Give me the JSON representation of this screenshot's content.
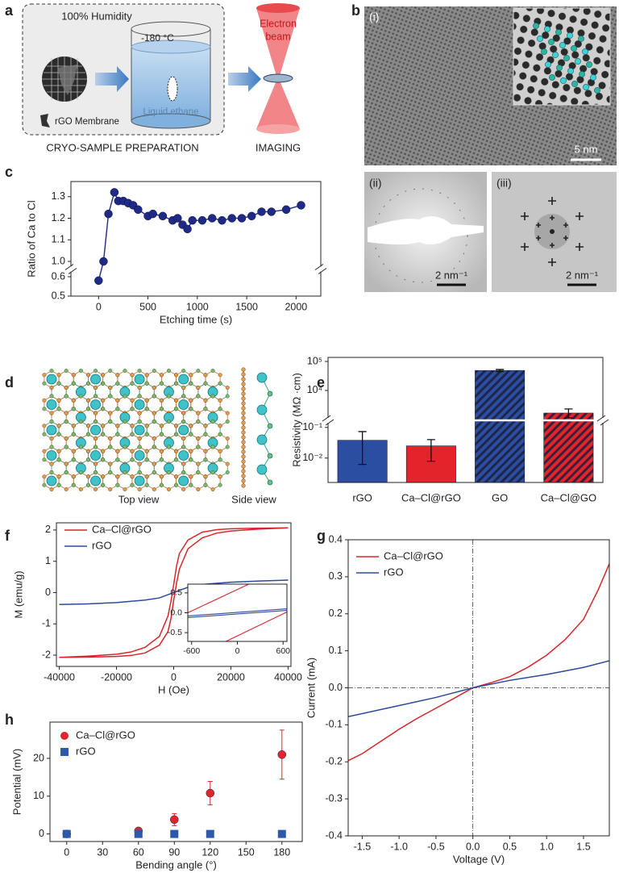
{
  "panel_labels": [
    "a",
    "b",
    "c",
    "d",
    "e",
    "f",
    "g",
    "h"
  ],
  "panel_a": {
    "humidity": "100% Humidity",
    "temperature": "-180 °C",
    "membrane": "rGO Membrane",
    "liquid": "Liquid ethane",
    "preparation": "CRYO-SAMPLE PREPARATION",
    "beam_lines": [
      "Electron",
      "beam"
    ],
    "imaging": "IMAGING"
  },
  "panel_b": {
    "labels": [
      "(i)",
      "(ii)",
      "(iii)"
    ],
    "scale_bars": [
      "5 nm",
      "2 nm⁻¹",
      "2 nm⁻¹"
    ]
  },
  "panel_d": {
    "top_view": "Top view",
    "side_view": "Side view"
  },
  "chart_data": [
    {
      "type": "line",
      "x_label": "Etching time (s)",
      "y_label": "Ratio of Ca to Cl",
      "xlim": [
        -280,
        2250
      ],
      "xticks": [
        0,
        500,
        1000,
        1500,
        2000
      ],
      "ylim": [
        0.5,
        1.37
      ],
      "y_break": [
        0.6,
        1.0
      ],
      "yticks": [
        0.5,
        0.6,
        {
          "value": 1.0,
          "label": "1.0"
        },
        1.1,
        1.2,
        1.3
      ],
      "series": [
        {
          "color": "#1e2a86",
          "marker": "circle",
          "x": [
            0,
            50,
            100,
            160,
            200,
            250,
            300,
            350,
            400,
            500,
            550,
            650,
            750,
            800,
            850,
            900,
            950,
            1050,
            1150,
            1250,
            1350,
            1450,
            1550,
            1650,
            1750,
            1900,
            2050
          ],
          "values": [
            0.58,
            1.0,
            1.22,
            1.32,
            1.28,
            1.28,
            1.27,
            1.26,
            1.24,
            1.21,
            1.22,
            1.21,
            1.19,
            1.2,
            1.17,
            1.15,
            1.19,
            1.19,
            1.2,
            1.19,
            1.2,
            1.2,
            1.21,
            1.23,
            1.23,
            1.24,
            1.26
          ]
        }
      ]
    },
    {
      "type": "bar",
      "y_label": "Resistivity (MΩ ·cm)",
      "y_scale": "log",
      "categories": [
        "rGO",
        "Ca–Cl@rGO",
        "GO",
        "Ca–Cl@GO"
      ],
      "values": [
        0.038,
        0.025,
        49000,
        1660
      ],
      "error_low": [
        0.0062,
        0.0079,
        45000,
        1150
      ],
      "error_high": [
        0.073,
        0.04,
        53000,
        2300
      ],
      "colors": [
        "#2b4ea2",
        "#e3242b",
        "#2b4ea2",
        "#e3242b"
      ],
      "hatched": [
        false,
        false,
        true,
        true
      ],
      "ylim": [
        0.0016,
        138000
      ],
      "y_break": [
        0.17,
        930
      ],
      "yticks": [
        {
          "value": 0.01,
          "label": "10⁻²"
        },
        {
          "value": 0.1,
          "label": "10⁻¹"
        },
        {
          "value": 10000,
          "label": "10⁴"
        },
        {
          "value": 100000,
          "label": "10⁵"
        }
      ]
    },
    {
      "type": "line",
      "x_label": "H (Oe)",
      "y_label": "M (emu/g)",
      "legend": "upper left",
      "xlim": [
        -41000,
        41000
      ],
      "xticks": [
        -40000,
        -20000,
        0,
        20000,
        40000
      ],
      "ylim": [
        -2.36,
        2.23
      ],
      "yticks": [
        2,
        1,
        0,
        -1,
        -2
      ],
      "series": [
        {
          "name": "Ca–Cl@rGO",
          "color": "#d7262b",
          "x": [
            40000,
            30000,
            20000,
            15000,
            10000,
            5000,
            2000,
            1000,
            0,
            -1000,
            -2000,
            -5000,
            -10000,
            -15000,
            -20000,
            -30000,
            -40000,
            -30000,
            -20000,
            -15000,
            -10000,
            -5000,
            -2000,
            -1000,
            0,
            1000,
            2000,
            5000,
            10000,
            15000,
            20000,
            30000,
            40000
          ],
          "values": [
            2.07,
            2.06,
            2.04,
            2.01,
            1.93,
            1.68,
            1.25,
            0.85,
            0.25,
            -0.3,
            -0.75,
            -1.4,
            -1.75,
            -1.9,
            -1.97,
            -2.03,
            -2.07,
            -2.06,
            -2.04,
            -2.01,
            -1.93,
            -1.68,
            -1.25,
            -0.85,
            -0.25,
            0.3,
            0.75,
            1.4,
            1.75,
            1.9,
            1.97,
            2.03,
            2.07
          ]
        },
        {
          "name": "rGO",
          "color": "#2d4b9a",
          "x": [
            -40000,
            -30000,
            -20000,
            -10000,
            -5000,
            0,
            5000,
            10000,
            20000,
            30000,
            40000
          ],
          "values": [
            -0.38,
            -0.36,
            -0.32,
            -0.24,
            -0.17,
            0,
            0.17,
            0.26,
            0.33,
            0.37,
            0.4
          ]
        }
      ],
      "inset": {
        "type": "line",
        "xlim": [
          -650,
          650
        ],
        "xticks": [
          -600,
          0,
          600
        ],
        "ylim": [
          -0.72,
          0.72
        ],
        "yticks": [
          0.5,
          {
            "value": 0,
            "label": "0.0"
          },
          -0.5
        ],
        "series": [
          {
            "color": "#d7262b",
            "x": [
              -650,
              150
            ],
            "values": [
              0.0,
              0.72
            ]
          },
          {
            "color": "#d7262b",
            "x": [
              -150,
              650
            ],
            "values": [
              -0.72,
              0.02
            ]
          },
          {
            "color": "#2d4b9a",
            "x": [
              -650,
              650
            ],
            "values": [
              -0.08,
              0.1
            ]
          },
          {
            "color": "#2d4b9a",
            "x": [
              -650,
              650
            ],
            "values": [
              -0.12,
              0.06
            ]
          }
        ]
      }
    },
    {
      "type": "line",
      "x_label": "Voltage (V)",
      "y_label": "Current (mA)",
      "legend": "upper left",
      "zero_lines": true,
      "xlim": [
        -1.69,
        1.85
      ],
      "xticks": [
        -1.5,
        {
          "value": -1,
          "label": "-1.0"
        },
        -0.5,
        {
          "value": 0,
          "label": "0.0"
        },
        0.5,
        {
          "value": 1,
          "label": "1.0"
        },
        1.5
      ],
      "ylim": [
        -0.4,
        0.4
      ],
      "yticks": [
        0.4,
        0.3,
        0.2,
        0.1,
        {
          "value": 0,
          "label": "0.0"
        },
        -0.1,
        -0.2,
        -0.3,
        -0.4
      ],
      "series": [
        {
          "name": "Ca–Cl@rGO",
          "color": "#d7262b",
          "x": [
            -1.69,
            -1.5,
            -1.25,
            -1.0,
            -0.75,
            -0.5,
            -0.25,
            0,
            0.25,
            0.5,
            0.75,
            1.0,
            1.25,
            1.5,
            1.7,
            1.85
          ],
          "values": [
            -0.197,
            -0.178,
            -0.145,
            -0.112,
            -0.082,
            -0.055,
            -0.028,
            0,
            0.014,
            0.03,
            0.056,
            0.088,
            0.13,
            0.185,
            0.265,
            0.335
          ]
        },
        {
          "name": "rGO",
          "color": "#2d4b9a",
          "x": [
            -1.69,
            -1.0,
            -0.5,
            0,
            0.5,
            1.0,
            1.5,
            1.85
          ],
          "values": [
            -0.078,
            -0.048,
            -0.026,
            0,
            0.02,
            0.036,
            0.055,
            0.073
          ]
        }
      ]
    },
    {
      "type": "scatter",
      "x_label": "Bending angle (°)",
      "y_label": "Potential (mV)",
      "legend": "upper left",
      "xlim": [
        -14,
        197
      ],
      "xticks": [
        0,
        30,
        60,
        90,
        120,
        150,
        180
      ],
      "ylim": [
        -2,
        29.6
      ],
      "yticks": [
        0,
        10,
        20
      ],
      "series": [
        {
          "name": "Ca–Cl@rGO",
          "color": "#e3242b",
          "marker": "circle",
          "x": [
            0,
            60,
            90,
            120,
            180
          ],
          "values": [
            0,
            0.8,
            3.8,
            10.8,
            21
          ],
          "errors": [
            0.2,
            0.3,
            1.6,
            3.1,
            6.5
          ]
        },
        {
          "name": "rGO",
          "color": "#2d5aa8",
          "marker": "square",
          "x": [
            0,
            60,
            90,
            120,
            180
          ],
          "values": [
            0,
            0,
            0,
            0,
            0
          ]
        }
      ]
    }
  ]
}
